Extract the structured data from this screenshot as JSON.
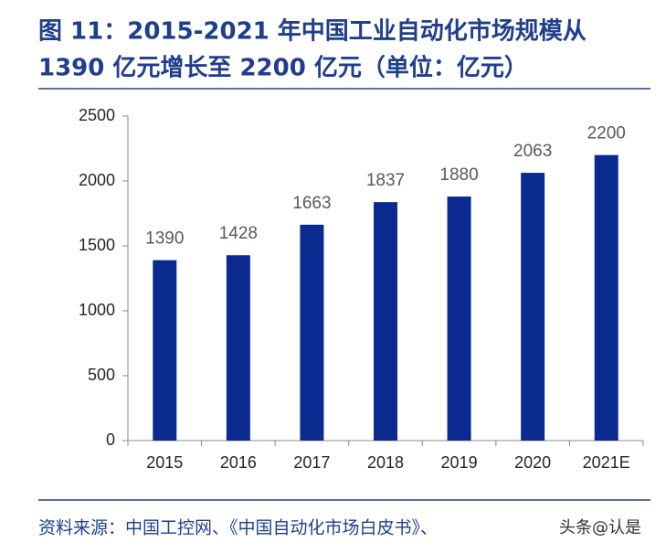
{
  "chart_data": {
    "type": "bar",
    "title": [
      "图 11：2015-2021 年中国工业自动化市场规模从",
      "1390 亿元增长至 2200 亿元（单位：亿元）"
    ],
    "categories": [
      "2015",
      "2016",
      "2017",
      "2018",
      "2019",
      "2020",
      "2021E"
    ],
    "values": [
      1390,
      1428,
      1663,
      1837,
      1880,
      2063,
      2200
    ],
    "color": "#0b2a8f",
    "ylim": [
      0,
      2500
    ],
    "yticks": [
      0,
      500,
      1000,
      1500,
      2000,
      2500
    ],
    "source": "资料来源：中国工控网、《中国自动化市场白皮书》、",
    "watermark": "头条@认是"
  }
}
